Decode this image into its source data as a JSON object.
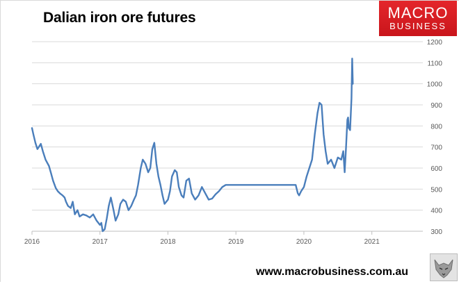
{
  "title": "Dalian iron ore futures",
  "logo": {
    "line1": "MACRO",
    "line2": "BUSINESS",
    "bg_color": "#d8161c"
  },
  "footer": {
    "url": "www.macrobusiness.com.au"
  },
  "chart_data": {
    "type": "line",
    "title": "Dalian iron ore futures",
    "xlabel": "",
    "ylabel": "",
    "x_ticks": [
      "2016",
      "2017",
      "2018",
      "2019",
      "2020",
      "2021"
    ],
    "y_ticks": [
      "300",
      "400",
      "500",
      "600",
      "700",
      "800",
      "900",
      "1000",
      "1100",
      "1200"
    ],
    "xlim": [
      2016,
      2021.75
    ],
    "ylim": [
      300,
      1200
    ],
    "y_axis_position": "right",
    "grid": "horizontal",
    "line_color": "#4a7ebb",
    "series": [
      {
        "name": "",
        "x": [
          2016.0,
          2016.02,
          2016.05,
          2016.08,
          2016.1,
          2016.13,
          2016.16,
          2016.2,
          2016.25,
          2016.28,
          2016.31,
          2016.35,
          2016.38,
          2016.41,
          2016.45,
          2016.48,
          2016.5,
          2016.53,
          2016.57,
          2016.6,
          2016.63,
          2016.67,
          2016.7,
          2016.75,
          2016.8,
          2016.85,
          2016.9,
          2016.95,
          2017.0,
          2017.02,
          2017.04,
          2017.07,
          2017.1,
          2017.13,
          2017.16,
          2017.2,
          2017.23,
          2017.27,
          2017.3,
          2017.34,
          2017.38,
          2017.42,
          2017.46,
          2017.5,
          2017.53,
          2017.56,
          2017.6,
          2017.63,
          2017.67,
          2017.71,
          2017.74,
          2017.77,
          2017.8,
          2017.83,
          2017.86,
          2017.89,
          2017.92,
          2017.95,
          2018.0,
          2018.03,
          2018.06,
          2018.1,
          2018.13,
          2018.16,
          2018.2,
          2018.23,
          2018.27,
          2018.31,
          2018.35,
          2018.4,
          2018.45,
          2018.5,
          2018.55,
          2018.6,
          2018.65,
          2018.7,
          2018.75,
          2018.8,
          2018.85,
          2018.87,
          2019.0,
          2019.3,
          2019.6,
          2019.88,
          2019.91,
          2019.93,
          2019.96,
          2020.0,
          2020.04,
          2020.08,
          2020.12,
          2020.16,
          2020.2,
          2020.23,
          2020.26,
          2020.29,
          2020.32,
          2020.35,
          2020.4,
          2020.45,
          2020.5,
          2020.55,
          2020.58,
          2020.6,
          2020.62,
          2020.64,
          2020.65,
          2020.66,
          2020.68,
          2020.7,
          2020.71,
          2020.72
        ],
        "y": [
          790,
          760,
          720,
          690,
          700,
          715,
          680,
          640,
          610,
          575,
          540,
          505,
          490,
          480,
          470,
          460,
          440,
          420,
          410,
          440,
          380,
          400,
          370,
          380,
          375,
          365,
          380,
          350,
          330,
          340,
          300,
          310,
          360,
          420,
          460,
          400,
          350,
          380,
          430,
          450,
          440,
          400,
          420,
          450,
          470,
          520,
          600,
          640,
          620,
          580,
          600,
          690,
          720,
          620,
          560,
          520,
          470,
          430,
          450,
          490,
          560,
          590,
          580,
          510,
          470,
          460,
          540,
          550,
          480,
          450,
          470,
          510,
          480,
          450,
          455,
          475,
          490,
          510,
          520,
          520,
          520,
          520,
          520,
          520,
          480,
          470,
          490,
          510,
          560,
          600,
          640,
          760,
          860,
          910,
          900,
          760,
          680,
          620,
          640,
          600,
          650,
          640,
          680,
          580,
          700,
          830,
          840,
          790,
          780,
          930,
          1120,
          1000
        ]
      }
    ]
  }
}
